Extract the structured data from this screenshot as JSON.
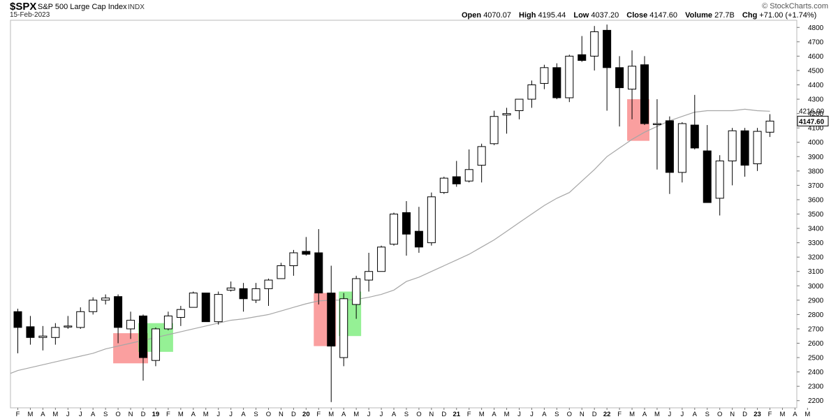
{
  "header": {
    "symbol": "$SPX",
    "name": "S&P 500 Large Cap Index",
    "exchange": "INDX",
    "date": "15-Feb-2023",
    "brand": "© StockCharts.com",
    "open_label": "Open",
    "open": "4070.07",
    "high_label": "High",
    "high": "4195.44",
    "low_label": "Low",
    "low": "4037.20",
    "close_label": "Close",
    "close": "4147.60",
    "volume_label": "Volume",
    "volume": "27.7B",
    "chg_label": "Chg",
    "chg": "+71.00 (+1.74%)"
  },
  "chart_data": {
    "type": "candlestick",
    "title": "$SPX S&P 500 Large Cap Index",
    "period": "monthly",
    "ylim": [
      2150,
      4850
    ],
    "y_ticks": [
      2200,
      2300,
      2400,
      2500,
      2600,
      2700,
      2800,
      2900,
      3000,
      3100,
      3200,
      3300,
      3400,
      3500,
      3600,
      3700,
      3800,
      3900,
      4000,
      4100,
      4200,
      4300,
      4400,
      4500,
      4600,
      4700,
      4800
    ],
    "price_tags": [
      {
        "label": "4216.00",
        "value": 4216,
        "style": "plain"
      },
      {
        "label": "4147.60",
        "value": 4147.6,
        "style": "boxed"
      }
    ],
    "x_labels": [
      "F",
      "M",
      "A",
      "M",
      "J",
      "J",
      "A",
      "S",
      "O",
      "N",
      "D",
      "19",
      "F",
      "M",
      "A",
      "M",
      "J",
      "J",
      "A",
      "S",
      "O",
      "N",
      "D",
      "20",
      "F",
      "M",
      "A",
      "M",
      "J",
      "J",
      "A",
      "S",
      "O",
      "N",
      "D",
      "21",
      "F",
      "M",
      "A",
      "M",
      "J",
      "J",
      "A",
      "S",
      "O",
      "N",
      "D",
      "22",
      "F",
      "M",
      "A",
      "M",
      "J",
      "J",
      "A",
      "S",
      "O",
      "N",
      "D",
      "23",
      "F",
      "M",
      "A",
      "M"
    ],
    "candles": [
      {
        "month": "2018-02",
        "open": 2820,
        "high": 2840,
        "low": 2530,
        "close": 2710
      },
      {
        "month": "2018-03",
        "open": 2715,
        "high": 2790,
        "low": 2590,
        "close": 2640
      },
      {
        "month": "2018-04",
        "open": 2640,
        "high": 2720,
        "low": 2550,
        "close": 2650
      },
      {
        "month": "2018-05",
        "open": 2640,
        "high": 2740,
        "low": 2590,
        "close": 2710
      },
      {
        "month": "2018-06",
        "open": 2720,
        "high": 2790,
        "low": 2700,
        "close": 2720
      },
      {
        "month": "2018-07",
        "open": 2710,
        "high": 2850,
        "low": 2700,
        "close": 2820
      },
      {
        "month": "2018-08",
        "open": 2820,
        "high": 2920,
        "low": 2800,
        "close": 2900
      },
      {
        "month": "2018-09",
        "open": 2900,
        "high": 2940,
        "low": 2870,
        "close": 2915
      },
      {
        "month": "2018-10",
        "open": 2925,
        "high": 2940,
        "low": 2600,
        "close": 2710
      },
      {
        "month": "2018-11",
        "open": 2700,
        "high": 2820,
        "low": 2630,
        "close": 2760
      },
      {
        "month": "2018-12",
        "open": 2790,
        "high": 2800,
        "low": 2340,
        "close": 2500
      },
      {
        "month": "2019-01",
        "open": 2480,
        "high": 2710,
        "low": 2440,
        "close": 2700
      },
      {
        "month": "2019-02",
        "open": 2700,
        "high": 2820,
        "low": 2690,
        "close": 2790
      },
      {
        "month": "2019-03",
        "open": 2780,
        "high": 2860,
        "low": 2720,
        "close": 2835
      },
      {
        "month": "2019-04",
        "open": 2850,
        "high": 2960,
        "low": 2850,
        "close": 2950
      },
      {
        "month": "2019-05",
        "open": 2950,
        "high": 2950,
        "low": 2750,
        "close": 2750
      },
      {
        "month": "2019-06",
        "open": 2750,
        "high": 2960,
        "low": 2730,
        "close": 2940
      },
      {
        "month": "2019-07",
        "open": 2970,
        "high": 3030,
        "low": 2960,
        "close": 2985
      },
      {
        "month": "2019-08",
        "open": 2980,
        "high": 3020,
        "low": 2820,
        "close": 2910
      },
      {
        "month": "2019-09",
        "open": 2900,
        "high": 3020,
        "low": 2880,
        "close": 2980
      },
      {
        "month": "2019-10",
        "open": 2980,
        "high": 3050,
        "low": 2860,
        "close": 3040
      },
      {
        "month": "2019-11",
        "open": 3050,
        "high": 3160,
        "low": 3050,
        "close": 3140
      },
      {
        "month": "2019-12",
        "open": 3140,
        "high": 3250,
        "low": 3070,
        "close": 3230
      },
      {
        "month": "2020-01",
        "open": 3240,
        "high": 3340,
        "low": 3210,
        "close": 3220
      },
      {
        "month": "2020-02",
        "open": 3230,
        "high": 3395,
        "low": 2870,
        "close": 2950
      },
      {
        "month": "2020-03",
        "open": 2950,
        "high": 3140,
        "low": 2190,
        "close": 2580
      },
      {
        "month": "2020-04",
        "open": 2500,
        "high": 2950,
        "low": 2440,
        "close": 2910
      },
      {
        "month": "2020-05",
        "open": 2870,
        "high": 3070,
        "low": 2770,
        "close": 3050
      },
      {
        "month": "2020-06",
        "open": 3040,
        "high": 3230,
        "low": 2960,
        "close": 3100
      },
      {
        "month": "2020-07",
        "open": 3100,
        "high": 3280,
        "low": 3100,
        "close": 3270
      },
      {
        "month": "2020-08",
        "open": 3290,
        "high": 3510,
        "low": 3280,
        "close": 3500
      },
      {
        "month": "2020-09",
        "open": 3510,
        "high": 3590,
        "low": 3210,
        "close": 3360
      },
      {
        "month": "2020-10",
        "open": 3380,
        "high": 3550,
        "low": 3230,
        "close": 3270
      },
      {
        "month": "2020-11",
        "open": 3300,
        "high": 3650,
        "low": 3280,
        "close": 3620
      },
      {
        "month": "2020-12",
        "open": 3650,
        "high": 3760,
        "low": 3640,
        "close": 3750
      },
      {
        "month": "2021-01",
        "open": 3760,
        "high": 3870,
        "low": 3690,
        "close": 3710
      },
      {
        "month": "2021-02",
        "open": 3730,
        "high": 3950,
        "low": 3720,
        "close": 3810
      },
      {
        "month": "2021-03",
        "open": 3840,
        "high": 3990,
        "low": 3720,
        "close": 3970
      },
      {
        "month": "2021-04",
        "open": 3990,
        "high": 4220,
        "low": 3980,
        "close": 4180
      },
      {
        "month": "2021-05",
        "open": 4190,
        "high": 4240,
        "low": 4060,
        "close": 4200
      },
      {
        "month": "2021-06",
        "open": 4220,
        "high": 4300,
        "low": 4160,
        "close": 4300
      },
      {
        "month": "2021-07",
        "open": 4300,
        "high": 4430,
        "low": 4240,
        "close": 4400
      },
      {
        "month": "2021-08",
        "open": 4410,
        "high": 4540,
        "low": 4370,
        "close": 4520
      },
      {
        "month": "2021-09",
        "open": 4520,
        "high": 4550,
        "low": 4300,
        "close": 4310
      },
      {
        "month": "2021-10",
        "open": 4310,
        "high": 4610,
        "low": 4280,
        "close": 4600
      },
      {
        "month": "2021-11",
        "open": 4610,
        "high": 4740,
        "low": 4560,
        "close": 4570
      },
      {
        "month": "2021-12",
        "open": 4600,
        "high": 4810,
        "low": 4500,
        "close": 4770
      },
      {
        "month": "2022-01",
        "open": 4780,
        "high": 4820,
        "low": 4220,
        "close": 4520
      },
      {
        "month": "2022-02",
        "open": 4520,
        "high": 4600,
        "low": 4110,
        "close": 4380
      },
      {
        "month": "2022-03",
        "open": 4370,
        "high": 4640,
        "low": 4160,
        "close": 4530
      },
      {
        "month": "2022-04",
        "open": 4540,
        "high": 4600,
        "low": 4120,
        "close": 4130
      },
      {
        "month": "2022-05",
        "open": 4130,
        "high": 4300,
        "low": 3810,
        "close": 4130
      },
      {
        "month": "2022-06",
        "open": 4150,
        "high": 4180,
        "low": 3640,
        "close": 3790
      },
      {
        "month": "2022-07",
        "open": 3790,
        "high": 4140,
        "low": 3720,
        "close": 4130
      },
      {
        "month": "2022-08",
        "open": 4120,
        "high": 4330,
        "low": 3950,
        "close": 3960
      },
      {
        "month": "2022-09",
        "open": 3940,
        "high": 4120,
        "low": 3580,
        "close": 3580
      },
      {
        "month": "2022-10",
        "open": 3610,
        "high": 3910,
        "low": 3490,
        "close": 3870
      },
      {
        "month": "2022-11",
        "open": 3870,
        "high": 4100,
        "low": 3700,
        "close": 4080
      },
      {
        "month": "2022-12",
        "open": 4080,
        "high": 4100,
        "low": 3760,
        "close": 3840
      },
      {
        "month": "2023-01",
        "open": 3850,
        "high": 4100,
        "low": 3800,
        "close": 4076
      },
      {
        "month": "2023-02",
        "open": 4070.07,
        "high": 4195.44,
        "low": 4037.2,
        "close": 4147.6
      }
    ],
    "moving_average": [
      {
        "month": "2018-01",
        "value": 2390
      },
      {
        "month": "2018-02",
        "value": 2410
      },
      {
        "month": "2018-03",
        "value": 2430
      },
      {
        "month": "2018-04",
        "value": 2450
      },
      {
        "month": "2018-05",
        "value": 2470
      },
      {
        "month": "2018-06",
        "value": 2490
      },
      {
        "month": "2018-07",
        "value": 2510
      },
      {
        "month": "2018-08",
        "value": 2530
      },
      {
        "month": "2018-09",
        "value": 2560
      },
      {
        "month": "2018-10",
        "value": 2580
      },
      {
        "month": "2018-11",
        "value": 2600
      },
      {
        "month": "2018-12",
        "value": 2620
      },
      {
        "month": "2019-01",
        "value": 2640
      },
      {
        "month": "2019-02",
        "value": 2660
      },
      {
        "month": "2019-03",
        "value": 2680
      },
      {
        "month": "2019-04",
        "value": 2700
      },
      {
        "month": "2019-05",
        "value": 2720
      },
      {
        "month": "2019-06",
        "value": 2740
      },
      {
        "month": "2019-07",
        "value": 2760
      },
      {
        "month": "2019-08",
        "value": 2770
      },
      {
        "month": "2019-09",
        "value": 2785
      },
      {
        "month": "2019-10",
        "value": 2800
      },
      {
        "month": "2019-11",
        "value": 2825
      },
      {
        "month": "2019-12",
        "value": 2850
      },
      {
        "month": "2020-01",
        "value": 2875
      },
      {
        "month": "2020-02",
        "value": 2895
      },
      {
        "month": "2020-03",
        "value": 2900
      },
      {
        "month": "2020-04",
        "value": 2900
      },
      {
        "month": "2020-05",
        "value": 2905
      },
      {
        "month": "2020-06",
        "value": 2920
      },
      {
        "month": "2020-07",
        "value": 2940
      },
      {
        "month": "2020-08",
        "value": 2970
      },
      {
        "month": "2020-09",
        "value": 3030
      },
      {
        "month": "2020-10",
        "value": 3060
      },
      {
        "month": "2020-11",
        "value": 3100
      },
      {
        "month": "2020-12",
        "value": 3140
      },
      {
        "month": "2021-01",
        "value": 3180
      },
      {
        "month": "2021-02",
        "value": 3220
      },
      {
        "month": "2021-03",
        "value": 3270
      },
      {
        "month": "2021-04",
        "value": 3320
      },
      {
        "month": "2021-05",
        "value": 3380
      },
      {
        "month": "2021-06",
        "value": 3440
      },
      {
        "month": "2021-07",
        "value": 3500
      },
      {
        "month": "2021-08",
        "value": 3560
      },
      {
        "month": "2021-09",
        "value": 3610
      },
      {
        "month": "2021-10",
        "value": 3650
      },
      {
        "month": "2021-11",
        "value": 3730
      },
      {
        "month": "2021-12",
        "value": 3810
      },
      {
        "month": "2022-01",
        "value": 3900
      },
      {
        "month": "2022-02",
        "value": 3960
      },
      {
        "month": "2022-03",
        "value": 4020
      },
      {
        "month": "2022-04",
        "value": 4070
      },
      {
        "month": "2022-05",
        "value": 4110
      },
      {
        "month": "2022-06",
        "value": 4150
      },
      {
        "month": "2022-07",
        "value": 4180
      },
      {
        "month": "2022-08",
        "value": 4210
      },
      {
        "month": "2022-09",
        "value": 4220
      },
      {
        "month": "2022-10",
        "value": 4220
      },
      {
        "month": "2022-11",
        "value": 4220
      },
      {
        "month": "2022-12",
        "value": 4230
      },
      {
        "month": "2023-01",
        "value": 4220
      },
      {
        "month": "2023-02",
        "value": 4216
      }
    ],
    "highlight_boxes": [
      {
        "color": "red",
        "month_from": "2018-10",
        "month_to": "2018-12",
        "from": 2460,
        "to": 2670
      },
      {
        "color": "green",
        "month_from": "2018-12",
        "month_to": "2019-02",
        "from": 2540,
        "to": 2740
      },
      {
        "color": "red",
        "month_from": "2020-02",
        "month_to": "2020-03",
        "from": 2580,
        "to": 2950
      },
      {
        "color": "green",
        "month_from": "2020-04",
        "month_to": "2020-05",
        "from": 2650,
        "to": 2960
      },
      {
        "color": "red",
        "month_from": "2022-03",
        "month_to": "2022-04",
        "from": 4010,
        "to": 4300
      }
    ],
    "colors": {
      "up_body": "#ffffff",
      "down_body": "#000000",
      "moving_average": "#a6a6a6",
      "box_red": "#f75f5f",
      "box_green": "#4ee64e"
    },
    "grid": false
  }
}
